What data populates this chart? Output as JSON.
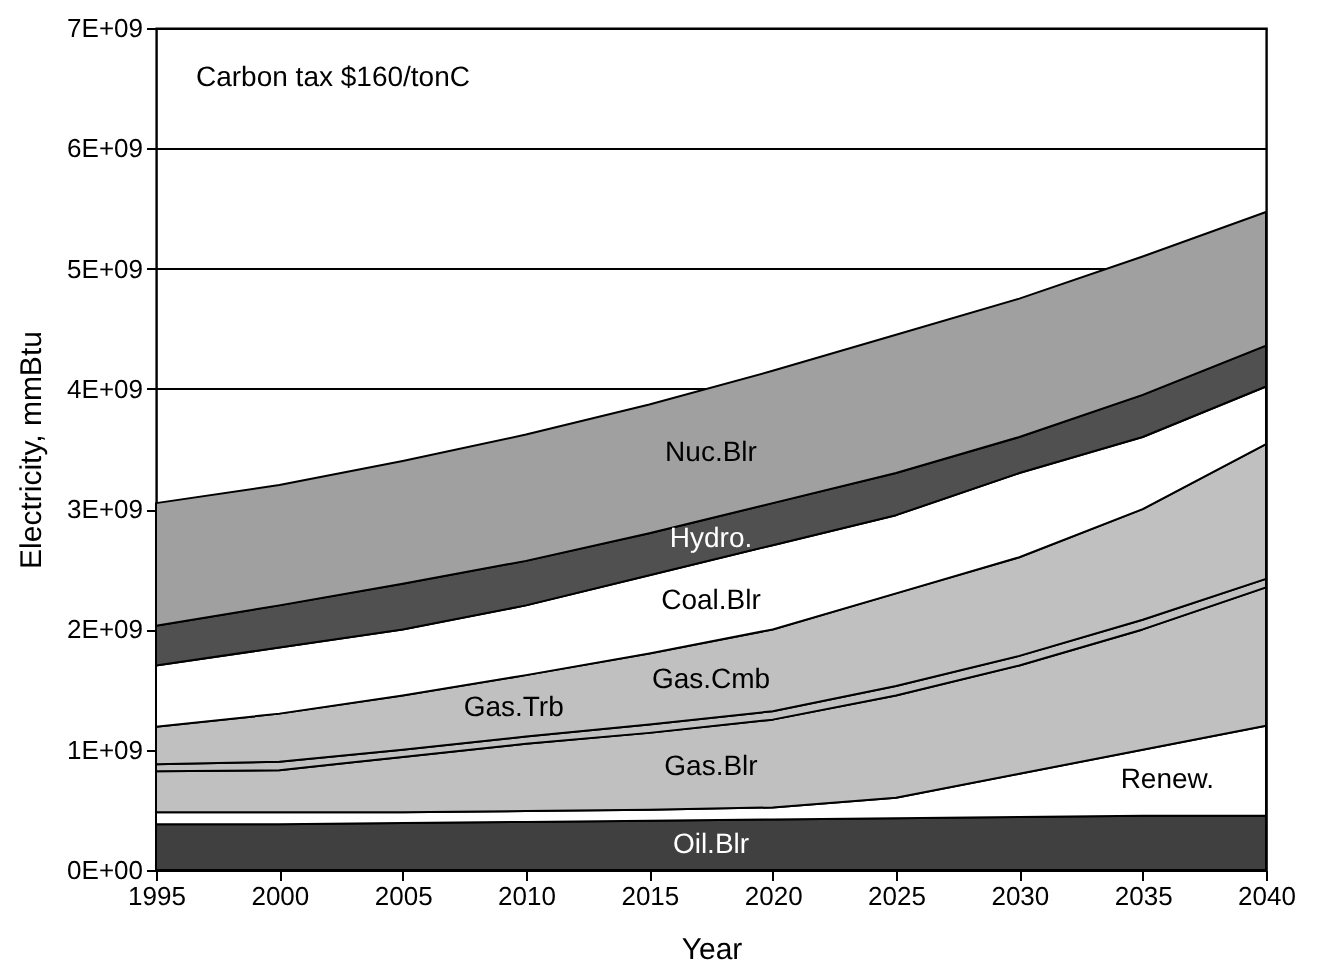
{
  "chart_data": {
    "type": "area",
    "stacked": true,
    "xlabel": "Year",
    "ylabel": "Electricity, mmBtu",
    "annotations": [
      "Carbon tax $160/tonC"
    ],
    "x": [
      1995,
      2000,
      2005,
      2010,
      2015,
      2020,
      2025,
      2030,
      2035,
      2040
    ],
    "series": [
      {
        "name": "Oil.Blr",
        "color": "#404040",
        "values": [
          380000000.0,
          380000000.0,
          390000000.0,
          400000000.0,
          410000000.0,
          420000000.0,
          430000000.0,
          440000000.0,
          450000000.0,
          450000000.0
        ]
      },
      {
        "name": "Renew.",
        "color": "#ffffff",
        "values": [
          100000000.0,
          100000000.0,
          90000000.0,
          90000000.0,
          90000000.0,
          100000000.0,
          170000000.0,
          360000000.0,
          550000000.0,
          750000000.0
        ]
      },
      {
        "name": "Gas.Blr",
        "color": "#c0c0c0",
        "values": [
          340000000.0,
          350000000.0,
          460000000.0,
          560000000.0,
          640000000.0,
          730000000.0,
          850000000.0,
          900000000.0,
          1000000000.0,
          1150000000.0
        ]
      },
      {
        "name": "Gas.Trb",
        "color": "#c0c0c0",
        "values": [
          60000000.0,
          70000000.0,
          60000000.0,
          60000000.0,
          70000000.0,
          70000000.0,
          80000000.0,
          80000000.0,
          80000000.0,
          70000000.0
        ]
      },
      {
        "name": "Gas.Cmb",
        "color": "#c0c0c0",
        "values": [
          310000000.0,
          400000000.0,
          450000000.0,
          510000000.0,
          590000000.0,
          680000000.0,
          770000000.0,
          820000000.0,
          920000000.0,
          1120000000.0
        ]
      },
      {
        "name": "Coal.Blr",
        "color": "#ffffff",
        "values": [
          510000000.0,
          550000000.0,
          550000000.0,
          580000000.0,
          650000000.0,
          700000000.0,
          650000000.0,
          700000000.0,
          600000000.0,
          480000000.0
        ]
      },
      {
        "name": "Hydro.",
        "color": "#505050",
        "values": [
          330000000.0,
          350000000.0,
          380000000.0,
          370000000.0,
          350000000.0,
          350000000.0,
          350000000.0,
          300000000.0,
          350000000.0,
          340000000.0
        ]
      },
      {
        "name": "Nuc.Blr",
        "color": "#a0a0a0",
        "values": [
          1020000000.0,
          1000000000.0,
          1020000000.0,
          1050000000.0,
          1070000000.0,
          1100000000.0,
          1150000000.0,
          1150000000.0,
          1150000000.0,
          1110000000.0
        ]
      }
    ],
    "xlim": [
      1995,
      2040
    ],
    "xticks": [
      1995,
      2000,
      2005,
      2010,
      2015,
      2020,
      2025,
      2030,
      2035,
      2040
    ],
    "ylim": [
      0,
      7000000000.0
    ],
    "yticks": [
      {
        "value": 0,
        "label": "0E+00"
      },
      {
        "value": 1000000000.0,
        "label": "1E+09"
      },
      {
        "value": 2000000000.0,
        "label": "2E+09"
      },
      {
        "value": 3000000000.0,
        "label": "3E+09"
      },
      {
        "value": 4000000000.0,
        "label": "4E+09"
      },
      {
        "value": 5000000000.0,
        "label": "5E+09"
      },
      {
        "value": 6000000000.0,
        "label": "6E+09"
      },
      {
        "value": 7000000000.0,
        "label": "7E+09"
      }
    ],
    "grid": "y",
    "legend": false
  }
}
